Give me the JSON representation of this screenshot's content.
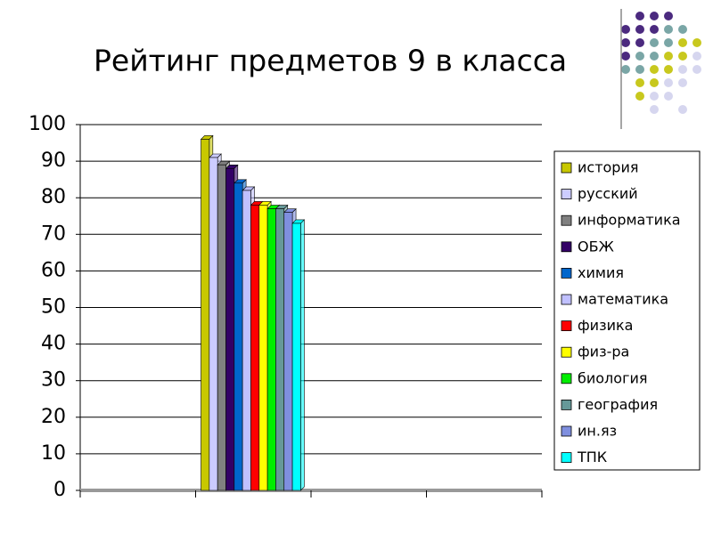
{
  "chart_data": {
    "type": "bar",
    "title": "Рейтинг предметов 9 в класса",
    "categories": [
      null,
      null,
      null,
      null
    ],
    "series": [
      {
        "name": "история",
        "color": "#c8c800",
        "values": [
          null,
          96,
          null,
          null
        ]
      },
      {
        "name": "русский",
        "color": "#ccccff",
        "values": [
          null,
          91,
          null,
          null
        ]
      },
      {
        "name": "информатика",
        "color": "#808080",
        "values": [
          null,
          89,
          null,
          null
        ]
      },
      {
        "name": "ОБЖ",
        "color": "#330066",
        "values": [
          null,
          88,
          null,
          null
        ]
      },
      {
        "name": "химия",
        "color": "#0066cc",
        "values": [
          null,
          84,
          null,
          null
        ]
      },
      {
        "name": "математика",
        "color": "#c0c0ff",
        "values": [
          null,
          82,
          null,
          null
        ]
      },
      {
        "name": "физика",
        "color": "#ff0000",
        "values": [
          null,
          78,
          null,
          null
        ]
      },
      {
        "name": "физ-ра",
        "color": "#ffff00",
        "values": [
          null,
          78,
          null,
          null
        ]
      },
      {
        "name": "биология",
        "color": "#00ee00",
        "values": [
          null,
          77,
          null,
          null
        ]
      },
      {
        "name": "география",
        "color": "#669999",
        "values": [
          null,
          77,
          null,
          null
        ]
      },
      {
        "name": "ин.яз",
        "color": "#7f8fdf",
        "values": [
          null,
          76,
          null,
          null
        ]
      },
      {
        "name": "ТПК",
        "color": "#00ffff",
        "values": [
          null,
          73,
          null,
          null
        ]
      }
    ],
    "ylim": [
      0,
      100
    ],
    "yticks": [
      0,
      10,
      20,
      30,
      40,
      50,
      60,
      70,
      80,
      90,
      100
    ],
    "grid": true,
    "legend": "right"
  }
}
